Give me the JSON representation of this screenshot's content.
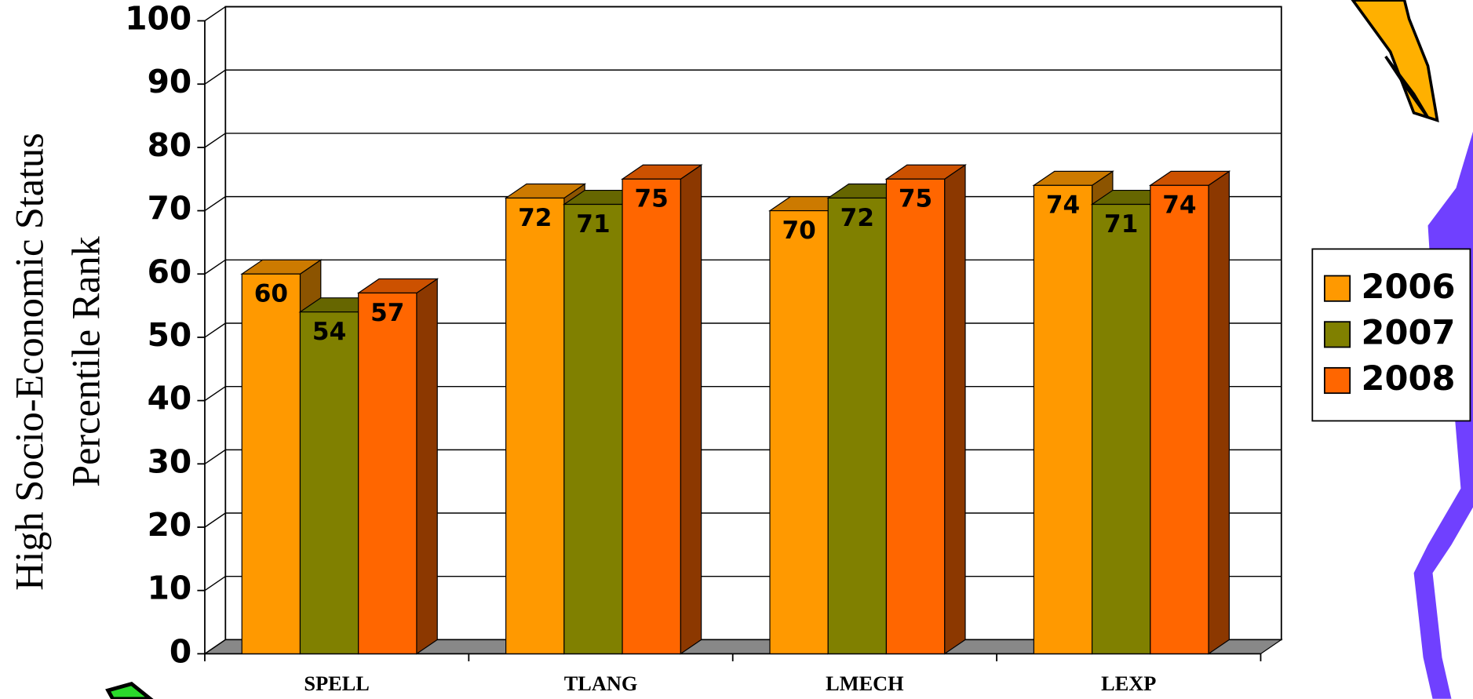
{
  "chart_data": {
    "type": "bar3d",
    "ylabel": [
      "High Socio-Economic Status",
      "Percentile Rank"
    ],
    "categories": [
      "SPELL",
      "TLANG",
      "LMECH",
      "LEXP"
    ],
    "series": [
      {
        "name": "2006",
        "color": "#ff9900",
        "values": [
          60,
          72,
          70,
          74
        ]
      },
      {
        "name": "2007",
        "color": "#808000",
        "values": [
          54,
          71,
          72,
          71
        ]
      },
      {
        "name": "2008",
        "color": "#ff6600",
        "values": [
          57,
          75,
          75,
          74
        ]
      }
    ],
    "ylim": [
      0,
      100
    ],
    "yticks": [
      0,
      10,
      20,
      30,
      40,
      50,
      60,
      70,
      80,
      90,
      100
    ],
    "grid": true,
    "legend": "right"
  }
}
